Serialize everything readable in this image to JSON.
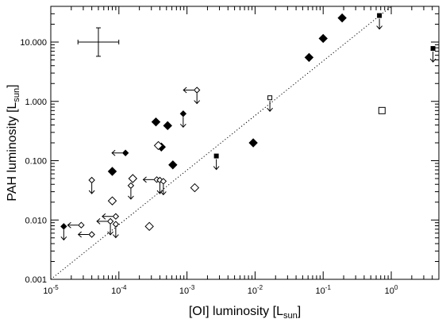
{
  "chart_data": {
    "type": "scatter",
    "xlabel": "[OI] luminosity [L",
    "xlabel_sub": "sun",
    "xlabel_close": "]",
    "ylabel": "PAH luminosity [L",
    "ylabel_sub": "sun",
    "ylabel_close": "]",
    "x_scale": "log",
    "y_scale": "log",
    "xlim": [
      1e-05,
      5
    ],
    "ylim": [
      0.001,
      40
    ],
    "x_ticks": [
      {
        "value": 1e-05,
        "base": "10",
        "exp": "-5"
      },
      {
        "value": 0.0001,
        "base": "10",
        "exp": "-4"
      },
      {
        "value": 0.001,
        "base": "10",
        "exp": "-3"
      },
      {
        "value": 0.01,
        "base": "10",
        "exp": "-2"
      },
      {
        "value": 0.1,
        "base": "10",
        "exp": "-1"
      },
      {
        "value": 1,
        "base": "10",
        "exp": "0"
      }
    ],
    "y_ticks": [
      {
        "value": 0.001,
        "label": "0.001"
      },
      {
        "value": 0.01,
        "label": "0.010"
      },
      {
        "value": 0.1,
        "label": "0.100"
      },
      {
        "value": 1,
        "label": "1.000"
      },
      {
        "value": 10,
        "label": "10.000"
      }
    ],
    "grid": false,
    "reference_line": {
      "style": "dotted",
      "points": [
        [
          1e-05,
          0.001
        ],
        [
          1,
          40
        ]
      ]
    },
    "error_bar_example": {
      "x": 5e-05,
      "y": 10,
      "x_err_dex": 0.3,
      "y_err_dex": 0.24
    },
    "series": [
      {
        "marker": "filled-diamond",
        "points": [
          {
            "x": 1.55e-05,
            "y": 0.0078,
            "upper_limit": true
          },
          {
            "x": 0.000125,
            "y": 0.135,
            "left_limit": true
          },
          {
            "x": 8e-05,
            "y": 0.066
          },
          {
            "x": 0.00035,
            "y": 0.45
          },
          {
            "x": 0.00042,
            "y": 0.17
          },
          {
            "x": 0.00052,
            "y": 0.39
          },
          {
            "x": 0.00062,
            "y": 0.085
          },
          {
            "x": 0.00088,
            "y": 0.62,
            "upper_limit": true
          },
          {
            "x": 0.0094,
            "y": 0.2
          },
          {
            "x": 0.062,
            "y": 5.5
          },
          {
            "x": 0.1,
            "y": 11.5
          },
          {
            "x": 0.19,
            "y": 25.5
          }
        ]
      },
      {
        "marker": "open-diamond",
        "points": [
          {
            "x": 2.8e-05,
            "y": 0.0082,
            "left_limit": true
          },
          {
            "x": 4e-05,
            "y": 0.0057,
            "left_limit": true
          },
          {
            "x": 4e-05,
            "y": 0.047,
            "upper_limit": true
          },
          {
            "x": 8e-05,
            "y": 0.021
          },
          {
            "x": 7.5e-05,
            "y": 0.0095,
            "upper_limit": true,
            "left_limit": true
          },
          {
            "x": 9e-05,
            "y": 0.0115,
            "left_limit": true
          },
          {
            "x": 9e-05,
            "y": 0.0085,
            "upper_limit": true
          },
          {
            "x": 0.00016,
            "y": 0.05
          },
          {
            "x": 0.00015,
            "y": 0.038,
            "upper_limit": true
          },
          {
            "x": 0.00028,
            "y": 0.0078
          },
          {
            "x": 0.00036,
            "y": 0.048,
            "left_limit": true
          },
          {
            "x": 0.00038,
            "y": 0.18
          },
          {
            "x": 0.0004,
            "y": 0.047,
            "upper_limit": true
          },
          {
            "x": 0.00045,
            "y": 0.045,
            "upper_limit": true
          },
          {
            "x": 0.0013,
            "y": 0.035
          },
          {
            "x": 0.0014,
            "y": 1.55,
            "upper_limit": true,
            "left_limit": true
          }
        ]
      },
      {
        "marker": "filled-square",
        "points": [
          {
            "x": 0.0027,
            "y": 0.12,
            "upper_limit": true
          },
          {
            "x": 0.67,
            "y": 28,
            "upper_limit": true
          },
          {
            "x": 4.1,
            "y": 7.8,
            "upper_limit": true
          }
        ]
      },
      {
        "marker": "open-square",
        "points": [
          {
            "x": 0.0165,
            "y": 1.15,
            "upper_limit": true
          },
          {
            "x": 0.73,
            "y": 0.7
          }
        ]
      }
    ]
  }
}
